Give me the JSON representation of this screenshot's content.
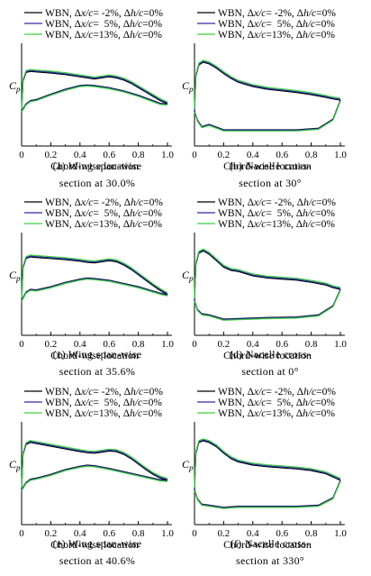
{
  "colors": {
    "black": "#000000",
    "blue": "#2a2aa8",
    "green": "#3ccf3c"
  },
  "legend": [
    {
      "pre": "WBN, Δ",
      "v1": "x/c",
      "mid": "= -2%, Δ",
      "v2": "h/c",
      "post": "=0%",
      "color": "#000000"
    },
    {
      "pre": "WBN, Δ",
      "v1": "x/c",
      "mid": "=  5%, Δ",
      "v2": "h/c",
      "post": "=0%",
      "color": "#2a2aa8"
    },
    {
      "pre": "WBN, Δ",
      "v1": "x/c",
      "mid": "=13%, Δ",
      "v2": "h/c",
      "post": "=0%",
      "color": "#3ccf3c"
    }
  ],
  "chart_data": [
    {
      "type": "line",
      "panel": "a",
      "xlabel": "Chord-wise location",
      "ylabel_main": "C",
      "ylabel_sub": "p",
      "xticks": [
        "0",
        "0.2",
        "0.4",
        "0.6",
        "0.8",
        "1.0"
      ],
      "xlim": [
        0,
        1
      ],
      "grid": false,
      "caption": [
        "(a) Wing span-wise",
        "section at 30.0%"
      ],
      "series": [
        {
          "surface": "upper",
          "x": [
            0,
            0.01,
            0.03,
            0.06,
            0.1,
            0.2,
            0.3,
            0.4,
            0.45,
            0.5,
            0.55,
            0.6,
            0.65,
            0.7,
            0.75,
            0.8,
            0.85,
            0.9,
            0.95,
            1.0
          ],
          "y": [
            0.05,
            0.6,
            0.76,
            0.78,
            0.77,
            0.75,
            0.72,
            0.68,
            0.66,
            0.64,
            0.66,
            0.68,
            0.66,
            0.62,
            0.56,
            0.48,
            0.4,
            0.32,
            0.24,
            0.18
          ]
        },
        {
          "surface": "lower",
          "x": [
            0,
            0.03,
            0.06,
            0.1,
            0.2,
            0.3,
            0.4,
            0.45,
            0.5,
            0.6,
            0.7,
            0.8,
            0.9,
            0.95,
            1.0
          ],
          "y": [
            0.05,
            0.18,
            0.24,
            0.26,
            0.36,
            0.45,
            0.52,
            0.53,
            0.52,
            0.48,
            0.42,
            0.34,
            0.24,
            0.19,
            0.18
          ]
        }
      ]
    },
    {
      "type": "line",
      "panel": "b",
      "xlabel": "Chord-wise location",
      "ylabel_main": "C",
      "ylabel_sub": "p",
      "xticks": [
        "0",
        "0.2",
        "0.4",
        "0.6",
        "0.8",
        "1.0"
      ],
      "xlim": [
        0,
        1
      ],
      "grid": false,
      "caption": [
        "(b) Nacelle cross-",
        "section at 30°"
      ],
      "series": [
        {
          "surface": "upper",
          "x": [
            0,
            0.01,
            0.03,
            0.06,
            0.1,
            0.15,
            0.2,
            0.25,
            0.3,
            0.4,
            0.5,
            0.6,
            0.7,
            0.8,
            0.9,
            0.95,
            1.0
          ],
          "y": [
            0.05,
            0.7,
            0.9,
            0.95,
            0.92,
            0.84,
            0.74,
            0.65,
            0.58,
            0.5,
            0.45,
            0.42,
            0.39,
            0.35,
            0.3,
            0.27,
            0.25
          ]
        },
        {
          "surface": "lower",
          "x": [
            0,
            0.02,
            0.05,
            0.1,
            0.2,
            0.3,
            0.5,
            0.7,
            0.85,
            0.95,
            1.0
          ],
          "y": [
            0.05,
            -0.12,
            -0.24,
            -0.2,
            -0.3,
            -0.3,
            -0.3,
            -0.3,
            -0.27,
            -0.1,
            0.25
          ]
        }
      ]
    },
    {
      "type": "line",
      "panel": "c",
      "xlabel": "Chord-wise location",
      "ylabel_main": "C",
      "ylabel_sub": "p",
      "xticks": [
        "0",
        "0.2",
        "0.4",
        "0.6",
        "0.8",
        "1.0"
      ],
      "xlim": [
        0,
        1
      ],
      "grid": false,
      "caption": [
        "(c) Wing span-wise",
        "section at 35.6%"
      ],
      "series": [
        {
          "surface": "upper",
          "x": [
            0,
            0.01,
            0.03,
            0.06,
            0.1,
            0.2,
            0.3,
            0.4,
            0.45,
            0.5,
            0.55,
            0.6,
            0.65,
            0.7,
            0.75,
            0.8,
            0.85,
            0.9,
            0.95,
            1.0
          ],
          "y": [
            0.05,
            0.65,
            0.82,
            0.85,
            0.84,
            0.82,
            0.8,
            0.77,
            0.75,
            0.74,
            0.76,
            0.78,
            0.76,
            0.7,
            0.62,
            0.52,
            0.42,
            0.32,
            0.23,
            0.15
          ]
        },
        {
          "surface": "lower",
          "x": [
            0,
            0.03,
            0.06,
            0.1,
            0.2,
            0.3,
            0.4,
            0.45,
            0.5,
            0.6,
            0.7,
            0.8,
            0.9,
            0.95,
            1.0
          ],
          "y": [
            0.05,
            0.2,
            0.25,
            0.24,
            0.3,
            0.38,
            0.44,
            0.46,
            0.45,
            0.42,
            0.36,
            0.3,
            0.22,
            0.18,
            0.15
          ]
        }
      ]
    },
    {
      "type": "line",
      "panel": "d",
      "xlabel": "Chord-wise location",
      "ylabel_main": "C",
      "ylabel_sub": "p",
      "xticks": [
        "0",
        "0.2",
        "0.4",
        "0.6",
        "0.8",
        "1.0"
      ],
      "xlim": [
        0,
        1
      ],
      "grid": false,
      "caption": [
        "(d) Nacelle cross-",
        "section at 0°"
      ],
      "series": [
        {
          "surface": "upper",
          "x": [
            0,
            0.01,
            0.03,
            0.06,
            0.1,
            0.15,
            0.2,
            0.25,
            0.3,
            0.4,
            0.5,
            0.6,
            0.7,
            0.8,
            0.9,
            0.95,
            1.0
          ],
          "y": [
            0.05,
            0.72,
            0.92,
            0.96,
            0.9,
            0.78,
            0.66,
            0.6,
            0.58,
            0.5,
            0.46,
            0.44,
            0.42,
            0.38,
            0.33,
            0.28,
            0.25
          ]
        },
        {
          "surface": "lower",
          "x": [
            0,
            0.02,
            0.05,
            0.1,
            0.2,
            0.3,
            0.5,
            0.7,
            0.85,
            0.95,
            1.0
          ],
          "y": [
            0.05,
            -0.12,
            -0.2,
            -0.22,
            -0.3,
            -0.29,
            -0.27,
            -0.26,
            -0.22,
            -0.05,
            0.25
          ]
        }
      ]
    },
    {
      "type": "line",
      "panel": "e",
      "xlabel": "Chord-wise location",
      "ylabel_main": "C",
      "ylabel_sub": "p",
      "xticks": [
        "0",
        "0.2",
        "0.4",
        "0.6",
        "0.8",
        "1.0"
      ],
      "xlim": [
        0,
        1
      ],
      "grid": false,
      "caption": [
        "(e) Wing span-wise",
        "section at 40.6%"
      ],
      "series": [
        {
          "surface": "upper",
          "x": [
            0,
            0.01,
            0.03,
            0.06,
            0.1,
            0.2,
            0.3,
            0.4,
            0.45,
            0.5,
            0.55,
            0.6,
            0.65,
            0.7,
            0.75,
            0.8,
            0.85,
            0.9,
            0.95,
            1.0
          ],
          "y": [
            0.05,
            0.7,
            0.88,
            0.92,
            0.9,
            0.85,
            0.8,
            0.75,
            0.73,
            0.72,
            0.74,
            0.76,
            0.75,
            0.7,
            0.62,
            0.52,
            0.42,
            0.33,
            0.26,
            0.22
          ]
        },
        {
          "surface": "lower",
          "x": [
            0,
            0.03,
            0.06,
            0.1,
            0.2,
            0.3,
            0.4,
            0.45,
            0.5,
            0.6,
            0.7,
            0.8,
            0.9,
            0.95,
            1.0
          ],
          "y": [
            0.05,
            0.18,
            0.24,
            0.26,
            0.33,
            0.42,
            0.48,
            0.5,
            0.49,
            0.44,
            0.38,
            0.32,
            0.26,
            0.23,
            0.22
          ]
        }
      ]
    },
    {
      "type": "line",
      "panel": "f",
      "xlabel": "Chord-wise location",
      "ylabel_main": "C",
      "ylabel_sub": "p",
      "xticks": [
        "0",
        "0.2",
        "0.4",
        "0.6",
        "0.8",
        "1.0"
      ],
      "xlim": [
        0,
        1
      ],
      "grid": false,
      "caption": [
        "(f) Nacelle cross-",
        "section at 330°"
      ],
      "series": [
        {
          "surface": "upper",
          "x": [
            0,
            0.01,
            0.03,
            0.06,
            0.1,
            0.15,
            0.2,
            0.25,
            0.3,
            0.4,
            0.5,
            0.6,
            0.7,
            0.8,
            0.9,
            0.95,
            1.0
          ],
          "y": [
            0.05,
            0.72,
            0.92,
            0.95,
            0.92,
            0.84,
            0.72,
            0.62,
            0.56,
            0.5,
            0.47,
            0.45,
            0.43,
            0.4,
            0.34,
            0.28,
            0.22
          ]
        },
        {
          "surface": "lower",
          "x": [
            0,
            0.02,
            0.05,
            0.1,
            0.2,
            0.3,
            0.5,
            0.7,
            0.85,
            0.95,
            1.0
          ],
          "y": [
            0.05,
            -0.12,
            -0.22,
            -0.24,
            -0.28,
            -0.26,
            -0.26,
            -0.26,
            -0.24,
            -0.1,
            0.22
          ]
        }
      ]
    }
  ]
}
